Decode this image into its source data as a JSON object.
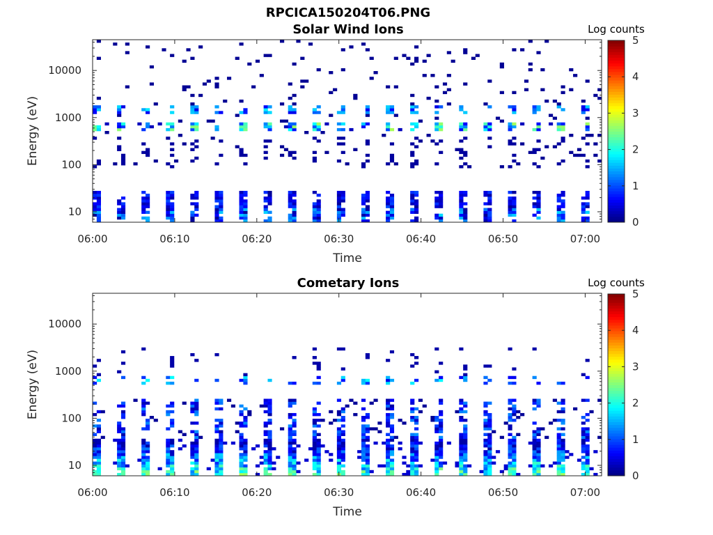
{
  "figure_title": "RPCICA150204T06.PNG",
  "chart_data": [
    {
      "type": "heatmap",
      "title": "Solar Wind Ions",
      "xlabel": "Time",
      "ylabel": "Energy (eV)",
      "x_range": [
        "06:00",
        "07:02"
      ],
      "x_ticks": [
        "06:00",
        "06:10",
        "06:20",
        "06:30",
        "06:40",
        "06:50",
        "07:00"
      ],
      "y_scale": "log",
      "y_range": [
        6,
        45000
      ],
      "y_ticks": [
        "10",
        "100",
        "1000",
        "10000"
      ],
      "colorbar": {
        "label": "Log counts",
        "min": 0,
        "max": 5,
        "ticks": [
          "0",
          "1",
          "2",
          "3",
          "4",
          "5"
        ]
      },
      "colormap": "jet",
      "pattern": "solar_wind",
      "description_values": {
        "peak_energy_eV": 650,
        "secondary_energy_eV": 1500,
        "low_energy_band_eV": [
          6,
          28
        ],
        "peak_log_counts": 2.8
      }
    },
    {
      "type": "heatmap",
      "title": "Cometary Ions",
      "xlabel": "Time",
      "ylabel": "Energy (eV)",
      "x_range": [
        "06:00",
        "07:02"
      ],
      "x_ticks": [
        "06:00",
        "06:10",
        "06:20",
        "06:30",
        "06:40",
        "06:50",
        "07:00"
      ],
      "y_scale": "log",
      "y_range": [
        6,
        45000
      ],
      "y_ticks": [
        "10",
        "100",
        "1000",
        "10000"
      ],
      "colorbar": {
        "label": "Log counts",
        "min": 0,
        "max": 5,
        "ticks": [
          "0",
          "1",
          "2",
          "3",
          "4",
          "5"
        ]
      },
      "colormap": "jet",
      "pattern": "cometary",
      "description_values": {
        "peak_energy_eV": 15,
        "secondary_energy_eV": 650,
        "upper_extent_eV": 3000,
        "peak_log_counts": 3.2
      }
    }
  ]
}
